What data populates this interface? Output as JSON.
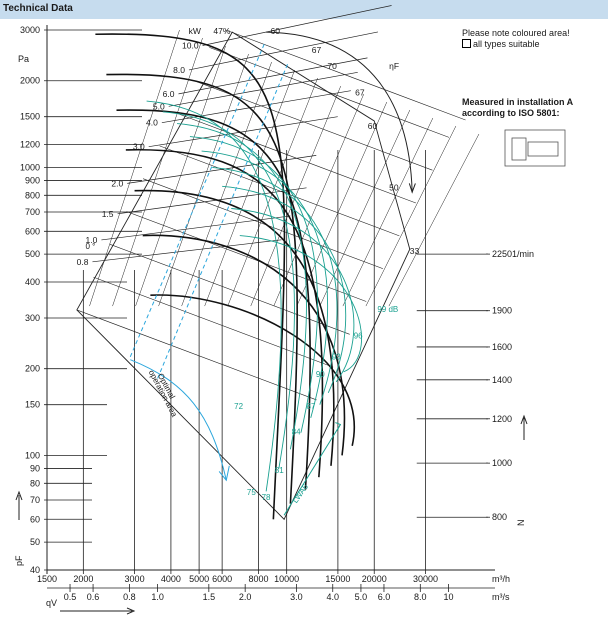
{
  "header": {
    "title": "Technical Data"
  },
  "notes": {
    "coloured_area": "Please note coloured area!",
    "all_types": "all types suitable",
    "measured": "Measured in installation A",
    "iso": "according to ISO 5801:"
  },
  "colors": {
    "header_bg": "#c6dcee",
    "teal": "#1aa090",
    "blue": "#2ba6dc",
    "grid": "#222222"
  },
  "chart_data": {
    "type": "fan-performance",
    "title": "Technical Data",
    "ylabel": "pF",
    "yunit": "Pa",
    "xlabel": "qV",
    "ylim": [
      40,
      3000
    ],
    "y_ticks": [
      {
        "v": 3000,
        "l": "3000"
      },
      {
        "v": 2000,
        "l": "2000"
      },
      {
        "v": 1500,
        "l": "1500"
      },
      {
        "v": 1200,
        "l": "1200"
      },
      {
        "v": 1000,
        "l": "1000"
      },
      {
        "v": 900,
        "l": "900"
      },
      {
        "v": 800,
        "l": "800"
      },
      {
        "v": 700,
        "l": "700"
      },
      {
        "v": 600,
        "l": "600"
      },
      {
        "v": 500,
        "l": "500"
      },
      {
        "v": 400,
        "l": "400"
      },
      {
        "v": 300,
        "l": "300"
      },
      {
        "v": 200,
        "l": "200"
      },
      {
        "v": 150,
        "l": "150"
      },
      {
        "v": 100,
        "l": "100"
      },
      {
        "v": 90,
        "l": "90"
      },
      {
        "v": 80,
        "l": "80"
      },
      {
        "v": 70,
        "l": "70"
      },
      {
        "v": 60,
        "l": "60"
      },
      {
        "v": 50,
        "l": "50"
      },
      {
        "v": 40,
        "l": "40"
      }
    ],
    "x_m3h": {
      "unit": "m³/h",
      "range": [
        1500,
        50000
      ],
      "ticks": [
        {
          "v": 1500,
          "l": "1500"
        },
        {
          "v": 2000,
          "l": "2000"
        },
        {
          "v": 3000,
          "l": "3000"
        },
        {
          "v": 4000,
          "l": "4000"
        },
        {
          "v": 5000,
          "l": "5000"
        },
        {
          "v": 6000,
          "l": "6000"
        },
        {
          "v": 8000,
          "l": "8000"
        },
        {
          "v": 10000,
          "l": "10000"
        },
        {
          "v": 15000,
          "l": "15000"
        },
        {
          "v": 20000,
          "l": "20000"
        },
        {
          "v": 30000,
          "l": "30000"
        }
      ]
    },
    "x_m3s": {
      "unit": "m³/s",
      "ticks": [
        {
          "v": 0.5,
          "l": "0.5"
        },
        {
          "v": 0.6,
          "l": "0.6"
        },
        {
          "v": 0.8,
          "l": "0.8"
        },
        {
          "v": 1.0,
          "l": "1.0"
        },
        {
          "v": 1.5,
          "l": "1.5"
        },
        {
          "v": 2.0,
          "l": "2.0"
        },
        {
          "v": 3.0,
          "l": "3.0"
        },
        {
          "v": 4.0,
          "l": "4.0"
        },
        {
          "v": 5.0,
          "l": "5.0"
        },
        {
          "v": 6.0,
          "l": "6.0"
        },
        {
          "v": 8.0,
          "l": "8.0"
        },
        {
          "v": 10,
          "l": "10"
        }
      ]
    },
    "speed_axis": {
      "unit": "1/min",
      "label": "N",
      "values": [
        {
          "n": 2250,
          "label": "2250",
          "p": 500
        },
        {
          "n": 1900,
          "label": "1900",
          "p": 318
        },
        {
          "n": 1600,
          "label": "1600",
          "p": 238
        },
        {
          "n": 1400,
          "label": "1400",
          "p": 183
        },
        {
          "n": 1200,
          "label": "1200",
          "p": 134
        },
        {
          "n": 1000,
          "label": "1000",
          "p": 94
        },
        {
          "n": 800,
          "label": "800",
          "p": 61
        }
      ]
    },
    "power_kw": [
      "10.0",
      "8.0",
      "6.0",
      "5.0",
      "4.0",
      "3.0",
      "2.0",
      "1.5",
      "1.0",
      "0.8"
    ],
    "efficiency_pct": [
      "47%",
      "60",
      "67",
      "70",
      "67",
      "60",
      "50",
      "33"
    ],
    "noise_db": [
      "99 dB",
      "96",
      "93",
      "90",
      "87",
      "84",
      "81",
      "78",
      "75",
      "72"
    ],
    "annotations": {
      "optimal": "Optimal",
      "operation_area": "operation area",
      "eta": "ηF",
      "lw": "LWA6",
      "kw": "kW",
      "zero": "0 °"
    }
  }
}
